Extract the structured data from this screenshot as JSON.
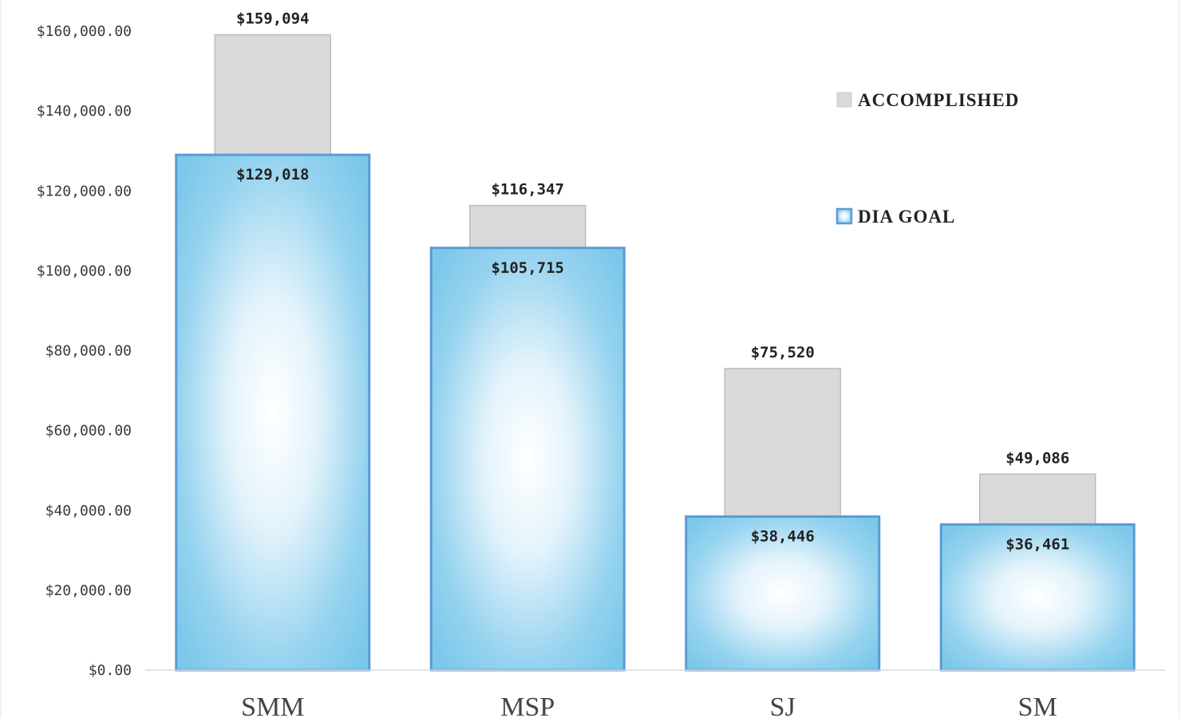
{
  "chart_data": {
    "type": "bar",
    "title": "",
    "xlabel": "",
    "ylabel": "",
    "categories": [
      "SMM",
      "MSP",
      "SJ",
      "SM"
    ],
    "ylim": [
      0,
      160000
    ],
    "yticks": [
      0,
      20000,
      40000,
      60000,
      80000,
      100000,
      120000,
      140000,
      160000
    ],
    "ytick_labels": [
      "$0.00",
      "$20,000.00",
      "$40,000.00",
      "$60,000.00",
      "$80,000.00",
      "$100,000.00",
      "$120,000.00",
      "$140,000.00",
      "$160,000.00"
    ],
    "grid": false,
    "legend_position": "top-right",
    "overlap": true,
    "series": [
      {
        "name": "ACCOMPLISHED",
        "color": "#d9d9d9",
        "values": [
          159094,
          116347,
          75520,
          49086
        ],
        "labels": [
          "$159,094",
          "$116,347",
          "$75,520",
          "$49,086"
        ]
      },
      {
        "name": "DIA GOAL",
        "color": "#7fcaec",
        "border_color": "#5b9bd5",
        "values": [
          129018,
          105715,
          38446,
          36461
        ],
        "labels": [
          "$129,018",
          "$105,715",
          "$38,446",
          "$36,461"
        ]
      }
    ]
  }
}
